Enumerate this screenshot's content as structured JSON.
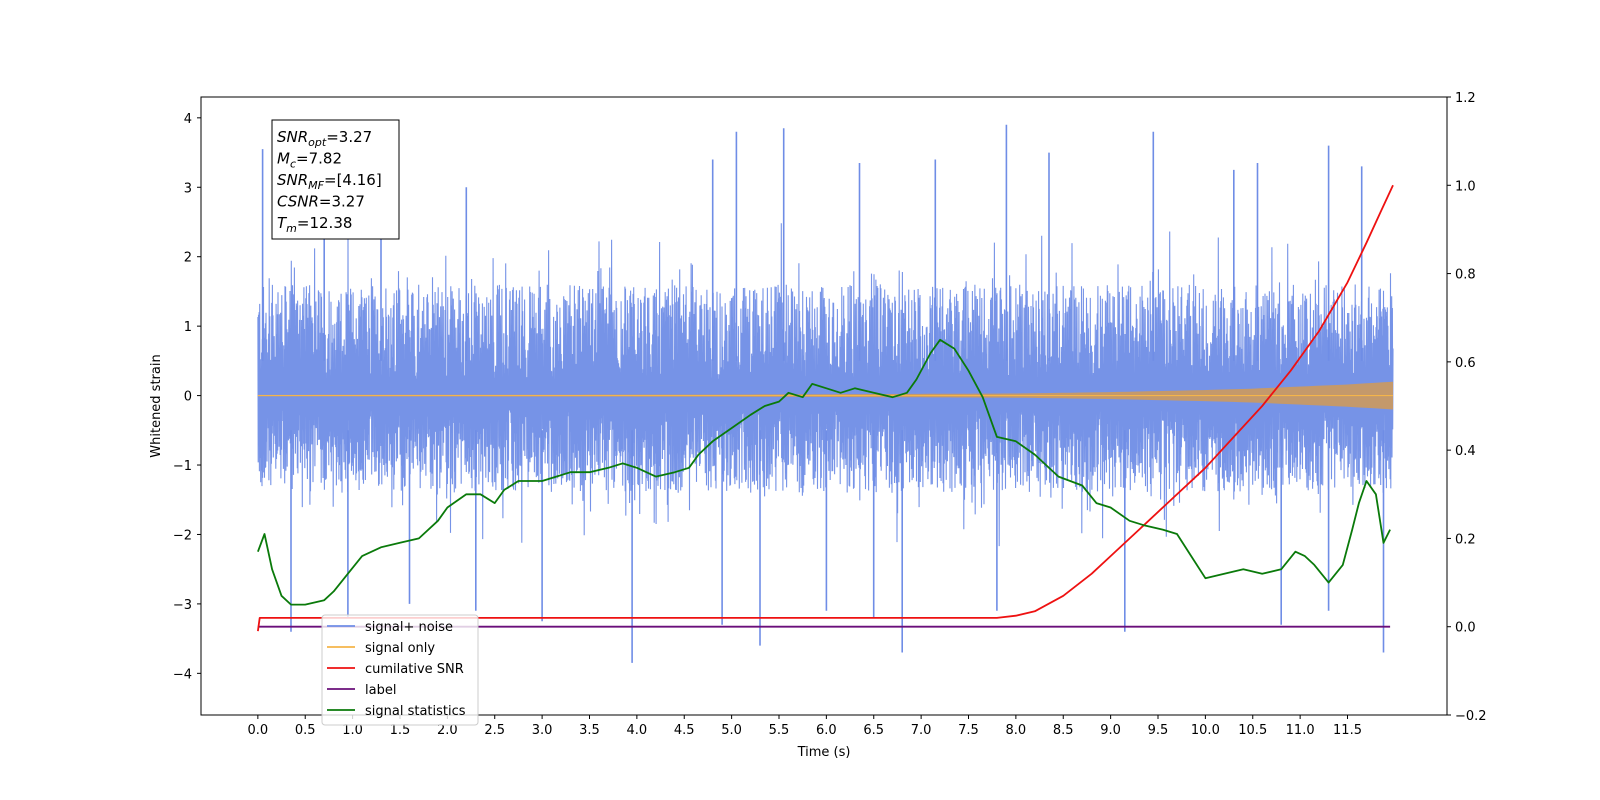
{
  "chart_data": {
    "type": "line",
    "xlabel": "Time (s)",
    "ylabel": "Whitened strain",
    "xlim": [
      -0.6,
      12.55
    ],
    "ylim": [
      -4.6,
      4.3
    ],
    "y2lim": [
      -0.2,
      1.2
    ],
    "x_ticks": [
      0.0,
      0.5,
      1.0,
      1.5,
      2.0,
      2.5,
      3.0,
      3.5,
      4.0,
      4.5,
      5.0,
      5.5,
      6.0,
      6.5,
      7.0,
      7.5,
      8.0,
      8.5,
      9.0,
      9.5,
      10.0,
      10.5,
      11.0,
      11.5
    ],
    "x_tick_labels": [
      "0.0",
      "0.5",
      "1.0",
      "1.5",
      "2.0",
      "2.5",
      "3.0",
      "3.5",
      "4.0",
      "4.5",
      "5.0",
      "5.5",
      "6.0",
      "6.5",
      "7.0",
      "7.5",
      "8.0",
      "8.5",
      "9.0",
      "9.5",
      "10.0",
      "10.5",
      "11.0",
      "11.5"
    ],
    "y_ticks": [
      -4,
      -3,
      -2,
      -1,
      0,
      1,
      2,
      3,
      4
    ],
    "y_tick_labels": [
      "−4",
      "−3",
      "−2",
      "−1",
      "0",
      "1",
      "2",
      "3",
      "4"
    ],
    "y2_ticks": [
      -0.2,
      0.0,
      0.2,
      0.4,
      0.6,
      0.8,
      1.0,
      1.2
    ],
    "y2_tick_labels": [
      "−0.2",
      "0.0",
      "0.2",
      "0.4",
      "0.6",
      "0.8",
      "1.0",
      "1.2"
    ],
    "grid": false,
    "legend_position": "lower-left",
    "colors": {
      "signal_noise": "#6f8de6",
      "signal_only": "#f5b54a",
      "cumulative_snr": "#ee1111",
      "label": "#6a0f7a",
      "signal_statistics": "#0a7a0a",
      "signal_envelope_fill": "#c4996b"
    },
    "series": [
      {
        "name": "signal+ noise",
        "axis": "left",
        "style": "dense-noise",
        "x_range": [
          0.0,
          11.98
        ],
        "envelope_typical": [
          -1.4,
          1.6
        ],
        "peaks": [
          [
            0.05,
            3.55
          ],
          [
            0.7,
            2.8
          ],
          [
            1.3,
            3.0
          ],
          [
            2.2,
            3.0
          ],
          [
            4.8,
            3.4
          ],
          [
            5.05,
            3.8
          ],
          [
            5.55,
            3.85
          ],
          [
            6.35,
            3.35
          ],
          [
            7.15,
            3.4
          ],
          [
            7.9,
            3.9
          ],
          [
            8.35,
            3.5
          ],
          [
            9.45,
            3.8
          ],
          [
            10.3,
            3.25
          ],
          [
            10.55,
            3.35
          ],
          [
            11.3,
            3.6
          ],
          [
            11.65,
            3.3
          ]
        ],
        "troughs": [
          [
            0.35,
            -3.4
          ],
          [
            0.95,
            -3.2
          ],
          [
            1.6,
            -3.0
          ],
          [
            2.3,
            -3.1
          ],
          [
            3.0,
            -3.25
          ],
          [
            3.95,
            -3.85
          ],
          [
            4.9,
            -3.3
          ],
          [
            5.3,
            -3.6
          ],
          [
            6.0,
            -3.1
          ],
          [
            6.5,
            -3.2
          ],
          [
            6.8,
            -3.7
          ],
          [
            7.8,
            -3.1
          ],
          [
            9.15,
            -3.4
          ],
          [
            10.8,
            -3.3
          ],
          [
            11.3,
            -3.1
          ],
          [
            11.88,
            -3.7
          ]
        ]
      },
      {
        "name": "signal only",
        "axis": "left",
        "style": "chirp",
        "x_range": [
          0.0,
          11.98
        ],
        "amplitude": [
          [
            0.0,
            0.01
          ],
          [
            5.0,
            0.015
          ],
          [
            8.0,
            0.03
          ],
          [
            9.0,
            0.05
          ],
          [
            10.0,
            0.08
          ],
          [
            10.5,
            0.1
          ],
          [
            11.0,
            0.13
          ],
          [
            11.5,
            0.16
          ],
          [
            11.98,
            0.2
          ]
        ]
      },
      {
        "name": "cumilative SNR",
        "axis": "right",
        "x": [
          0.0,
          0.02,
          7.8,
          8.0,
          8.2,
          8.5,
          8.8,
          9.0,
          9.3,
          9.6,
          10.0,
          10.3,
          10.6,
          10.9,
          11.2,
          11.5,
          11.7,
          11.85,
          11.98
        ],
        "values": [
          -0.01,
          0.02,
          0.02,
          0.025,
          0.035,
          0.07,
          0.12,
          0.16,
          0.22,
          0.28,
          0.36,
          0.43,
          0.5,
          0.58,
          0.67,
          0.78,
          0.87,
          0.94,
          1.0
        ]
      },
      {
        "name": "label",
        "axis": "right",
        "x": [
          0.0,
          11.95
        ],
        "values": [
          0.0,
          0.0
        ]
      },
      {
        "name": "signal statistics",
        "axis": "right",
        "x": [
          0.0,
          0.07,
          0.15,
          0.25,
          0.35,
          0.5,
          0.7,
          0.8,
          0.95,
          1.1,
          1.3,
          1.5,
          1.7,
          1.9,
          2.0,
          2.2,
          2.35,
          2.5,
          2.6,
          2.75,
          2.9,
          3.0,
          3.15,
          3.3,
          3.5,
          3.7,
          3.85,
          4.0,
          4.2,
          4.4,
          4.55,
          4.65,
          4.8,
          5.0,
          5.2,
          5.35,
          5.5,
          5.6,
          5.75,
          5.85,
          6.0,
          6.15,
          6.3,
          6.5,
          6.7,
          6.85,
          6.95,
          7.1,
          7.2,
          7.35,
          7.5,
          7.65,
          7.8,
          8.0,
          8.2,
          8.45,
          8.7,
          8.85,
          9.0,
          9.2,
          9.35,
          9.55,
          9.7,
          9.85,
          10.0,
          10.2,
          10.4,
          10.6,
          10.8,
          10.95,
          11.05,
          11.15,
          11.3,
          11.45,
          11.55,
          11.62,
          11.7,
          11.8,
          11.88,
          11.95
        ],
        "values": [
          0.17,
          0.21,
          0.13,
          0.07,
          0.05,
          0.05,
          0.06,
          0.08,
          0.12,
          0.16,
          0.18,
          0.19,
          0.2,
          0.24,
          0.27,
          0.3,
          0.3,
          0.28,
          0.31,
          0.33,
          0.33,
          0.33,
          0.34,
          0.35,
          0.35,
          0.36,
          0.37,
          0.36,
          0.34,
          0.35,
          0.36,
          0.39,
          0.42,
          0.45,
          0.48,
          0.5,
          0.51,
          0.53,
          0.52,
          0.55,
          0.54,
          0.53,
          0.54,
          0.53,
          0.52,
          0.53,
          0.56,
          0.62,
          0.65,
          0.63,
          0.58,
          0.52,
          0.43,
          0.42,
          0.39,
          0.34,
          0.32,
          0.28,
          0.27,
          0.24,
          0.23,
          0.22,
          0.21,
          0.16,
          0.11,
          0.12,
          0.13,
          0.12,
          0.13,
          0.17,
          0.16,
          0.14,
          0.1,
          0.14,
          0.22,
          0.28,
          0.33,
          0.3,
          0.19,
          0.22
        ]
      }
    ],
    "annotation_box": {
      "lines": [
        {
          "symbol": "SNR",
          "sub": "opt",
          "value": "=3.27"
        },
        {
          "symbol": "M",
          "sub": "c",
          "value": "=7.82"
        },
        {
          "symbol": "SNR",
          "sub": "MF",
          "value": "=[4.16]"
        },
        {
          "symbol": "CSNR",
          "sub": "",
          "value": "=3.27"
        },
        {
          "symbol": "T",
          "sub": "m",
          "value": "=12.38"
        }
      ]
    },
    "legend": {
      "entries": [
        {
          "label": "signal+ noise",
          "color_key": "signal_noise"
        },
        {
          "label": "signal only",
          "color_key": "signal_only"
        },
        {
          "label": "cumilative SNR",
          "color_key": "cumulative_snr"
        },
        {
          "label": "label",
          "color_key": "label"
        },
        {
          "label": "signal statistics",
          "color_key": "signal_statistics"
        }
      ]
    }
  }
}
